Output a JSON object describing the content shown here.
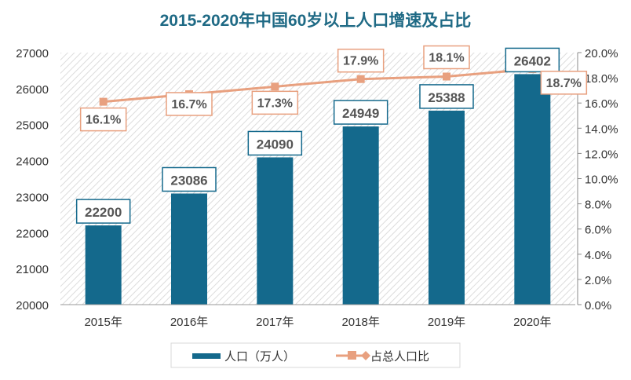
{
  "chart_data": {
    "type": "bar+line",
    "title": "2015-2020年中国60岁以上人口增速及占比",
    "categories": [
      "2015年",
      "2016年",
      "2017年",
      "2018年",
      "2019年",
      "2020年"
    ],
    "series": [
      {
        "name": "人口（万人）",
        "type": "bar",
        "axis": "left",
        "values": [
          22200,
          23086,
          24090,
          24949,
          25388,
          26402
        ],
        "labels": [
          "22200",
          "23086",
          "24090",
          "24949",
          "25388",
          "26402"
        ],
        "color": "#14698c"
      },
      {
        "name": "占总人口比",
        "type": "line",
        "axis": "right",
        "values": [
          16.1,
          16.7,
          17.3,
          17.9,
          18.1,
          18.7
        ],
        "labels": [
          "16.1%",
          "16.7%",
          "17.3%",
          "17.9%",
          "18.1%",
          "18.7%"
        ],
        "color": "#e8a07f"
      }
    ],
    "ylim": [
      20000,
      27000
    ],
    "yticks": [
      "20000",
      "21000",
      "22000",
      "23000",
      "24000",
      "25000",
      "26000",
      "27000"
    ],
    "y2lim": [
      0,
      20
    ],
    "y2ticks": [
      "0.0%",
      "2.0%",
      "4.0%",
      "6.0%",
      "8.0%",
      "10.0%",
      "12.0%",
      "14.0%",
      "16.0%",
      "18.0%",
      "20.0%"
    ],
    "legend": "bottom",
    "grid": false,
    "title_color": "#1f6a85"
  }
}
